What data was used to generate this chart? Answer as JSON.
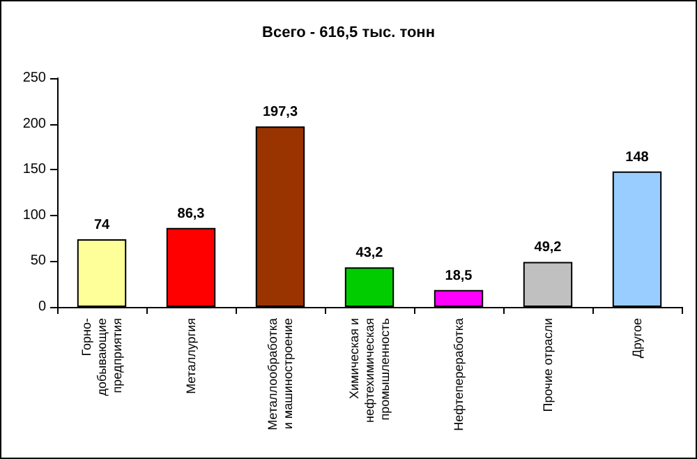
{
  "chart_data": {
    "type": "bar",
    "title": "Всего - 616,5 тыс. тонн",
    "categories": [
      "Горно-\nдобывающие\nпредприятия",
      "Металлургия",
      "Металлообработка\nи машиностроение",
      "Химическая и\nнефтехимическая\nпромышленность",
      "Нефтепереработка",
      "Прочие отрасли",
      "Другое"
    ],
    "values": [
      74,
      86.3,
      197.3,
      43.2,
      18.5,
      49.2,
      148
    ],
    "colors": [
      "#ffff99",
      "#ff0000",
      "#993300",
      "#00cc00",
      "#ff00ff",
      "#c0c0c0",
      "#99ccff"
    ],
    "value_labels": [
      "74",
      "86,3",
      "197,3",
      "43,2",
      "18,5",
      "49,2",
      "148"
    ],
    "ylim": [
      0,
      250
    ],
    "yticks": [
      0,
      50,
      100,
      150,
      200,
      250
    ],
    "grid": false
  }
}
